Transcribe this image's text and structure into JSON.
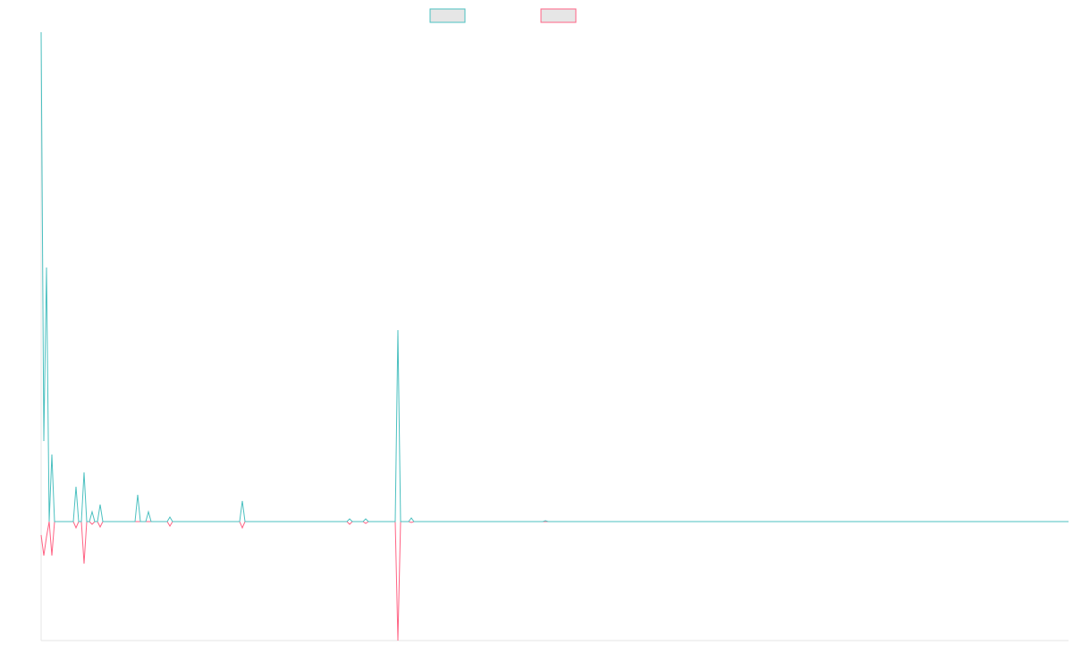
{
  "chart_data": {
    "type": "line",
    "x": [
      0,
      1,
      2,
      3,
      4,
      5,
      12,
      13,
      14,
      15,
      16,
      17,
      18,
      19,
      20,
      21,
      22,
      23,
      35,
      36,
      37,
      39,
      40,
      41,
      47,
      48,
      49,
      74,
      75,
      76,
      114,
      115,
      116,
      120,
      121,
      122,
      132,
      133,
      134,
      137,
      138,
      139,
      187,
      188,
      189,
      383
    ],
    "series": [
      {
        "color": "#4bc0c0",
        "values": [
          5.47,
          0.9,
          2.84,
          0,
          0.75,
          0,
          0,
          0.39,
          0,
          0,
          0.55,
          0,
          0,
          0.11,
          0,
          0,
          0.19,
          0,
          0,
          0.3,
          0,
          0,
          0.11,
          0,
          0,
          0.05,
          0,
          0,
          0.23,
          0,
          0,
          0.03,
          0,
          0,
          0.03,
          0,
          0,
          2.14,
          0,
          0,
          0.04,
          0,
          0,
          0.01,
          0,
          0
        ]
      },
      {
        "color": "#ff6384",
        "values": [
          -0.15,
          -0.38,
          -0.17,
          0,
          -0.38,
          0,
          0,
          -0.07,
          0,
          0,
          -0.47,
          0,
          0,
          -0.03,
          0,
          0,
          -0.06,
          0,
          0,
          0,
          0,
          0,
          0,
          0,
          0,
          -0.05,
          0,
          0,
          -0.07,
          0,
          0,
          -0.03,
          0,
          0,
          -0.02,
          0,
          0,
          -1.33,
          0,
          0,
          -0.01,
          0,
          0,
          0,
          0,
          0
        ]
      }
    ],
    "xlim": [
      0,
      383
    ],
    "ylim": [
      -1.33,
      5.47
    ]
  }
}
